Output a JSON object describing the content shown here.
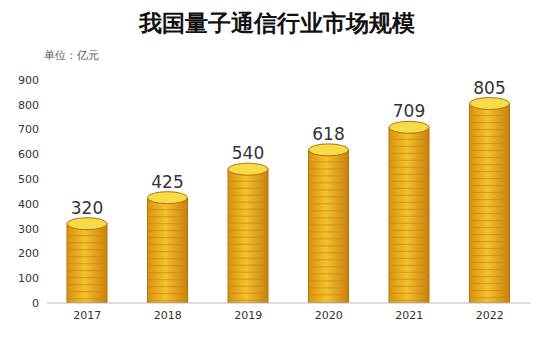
{
  "chart_data": {
    "type": "bar",
    "title": "我国量子通信行业市场规模",
    "y_label": "单位：亿元",
    "categories": [
      "2017",
      "2018",
      "2019",
      "2020",
      "2021",
      "2022"
    ],
    "values": [
      320,
      425,
      540,
      618,
      709,
      805
    ],
    "color": "#f2c12e",
    "ylim": [
      0,
      900
    ],
    "yticks": [
      0,
      100,
      200,
      300,
      400,
      500,
      600,
      700,
      800,
      900
    ],
    "grid": false,
    "data_labels": true
  }
}
